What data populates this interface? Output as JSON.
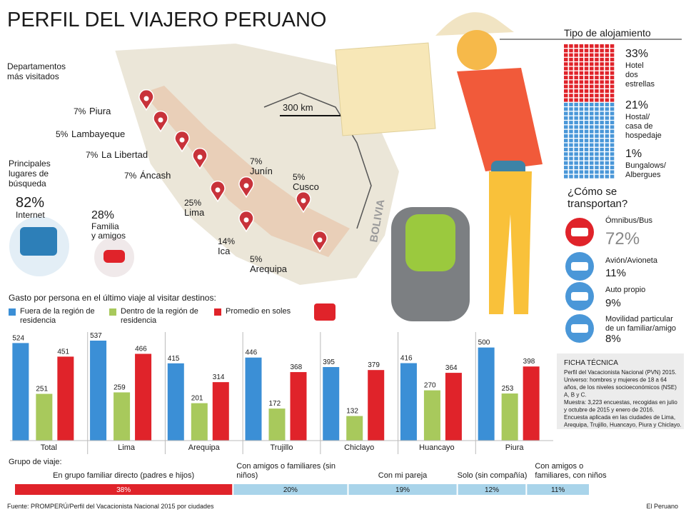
{
  "title": "PERFIL DEL VIAJERO PERUANO",
  "map": {
    "title": [
      "Departamentos",
      "más visitados"
    ],
    "scale": "300 km",
    "country": "BOLIVIA",
    "departments": [
      {
        "pct": "7%",
        "name": "Piura"
      },
      {
        "pct": "5%",
        "name": "Lambayeque"
      },
      {
        "pct": "7%",
        "name": "La Libertad"
      },
      {
        "pct": "7%",
        "name": "Áncash"
      },
      {
        "pct": "25%",
        "name": "Lima"
      },
      {
        "pct": "7%",
        "name": "Junín"
      },
      {
        "pct": "5%",
        "name": "Cusco"
      },
      {
        "pct": "14%",
        "name": "Ica"
      },
      {
        "pct": "5%",
        "name": "Arequipa"
      }
    ]
  },
  "search": {
    "title": [
      "Principales",
      "lugares de",
      "búsqueda"
    ],
    "items": [
      {
        "pct": "82%",
        "name": [
          "Internet"
        ]
      },
      {
        "pct": "28%",
        "name": [
          "Familia",
          "y amigos"
        ]
      }
    ]
  },
  "lodging": {
    "title": "Tipo de alojamiento",
    "items": [
      {
        "pct": "33%",
        "name": [
          "Hotel",
          "dos",
          "estrellas"
        ]
      },
      {
        "pct": "21%",
        "name": [
          "Hostal/",
          "casa de",
          "hospedaje"
        ]
      },
      {
        "pct": "1%",
        "name": [
          "Bungalows/",
          "Albergues"
        ]
      }
    ]
  },
  "transport": {
    "title": [
      "¿Cómo se",
      "transportan?"
    ],
    "items": [
      {
        "name": [
          "Ómnibus/Bus"
        ],
        "pct": "72%"
      },
      {
        "name": [
          "Avión/Avioneta"
        ],
        "pct": "11%"
      },
      {
        "name": [
          "Auto propio"
        ],
        "pct": "9%"
      },
      {
        "name": [
          "Movilidad particular",
          "de un familiar/amigo"
        ],
        "pct": "8%"
      }
    ]
  },
  "ficha": {
    "title": "FICHA TÉCNICA",
    "lines": [
      "Perfil del Vacacionista Nacional (PVN) 2015.",
      "Universo: hombres y mujeres de 18 a 64",
      "años, de los niveles socioeconómicos (NSE)",
      "A, B y C.",
      "Muestra: 3,223 encuestas, recogidas en julio",
      "y octubre de 2015 y enero de 2016.",
      "Encuesta aplicada en las ciudades de Lima,",
      "Arequipa, Trujillo, Huancayo, Piura y Chiclayo."
    ]
  },
  "chart_data": [
    {
      "type": "bar",
      "title": "Gasto por persona en el último viaje al visitar destinos:",
      "categories": [
        "Total",
        "Lima",
        "Arequipa",
        "Trujillo",
        "Chiclayo",
        "Huancayo",
        "Piura"
      ],
      "series": [
        {
          "name": "Fuera de la región de residencia",
          "color": "#3b8fd6",
          "values": [
            524,
            537,
            415,
            446,
            395,
            416,
            500
          ]
        },
        {
          "name": "Dentro de la región de residencia",
          "color": "#a8c95c",
          "values": [
            251,
            259,
            201,
            172,
            132,
            270,
            253
          ]
        },
        {
          "name": "Promedio en soles",
          "color": "#e0232a",
          "values": [
            451,
            466,
            314,
            368,
            379,
            364,
            398
          ]
        }
      ]
    },
    {
      "type": "stacked-bar",
      "title": "Grupo de viaje:",
      "categories": [
        "En grupo familiar directo (padres e hijos)",
        "Con amigos o familiares (sin niños)",
        "Con mi pareja",
        "Solo (sin compañía)",
        "Con amigos o familiares, con niños"
      ],
      "values": [
        38,
        20,
        19,
        12,
        11
      ],
      "value_labels": [
        "38%",
        "20%",
        "19%",
        "12%",
        "11%"
      ],
      "colors": [
        "#e0232a",
        "#a9d4ea",
        "#a9d4ea",
        "#a9d4ea",
        "#a9d4ea"
      ]
    }
  ],
  "source": "Fuente: PROMPERÚ/Perfil del Vacacionista Nacional 2015 por ciudades",
  "credit": "El Peruano"
}
